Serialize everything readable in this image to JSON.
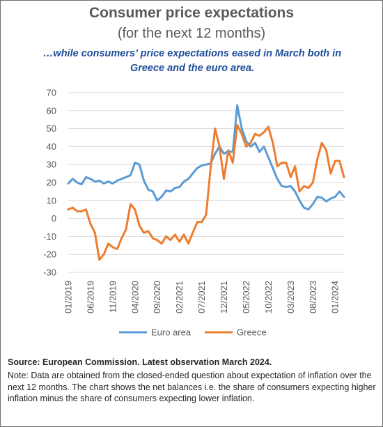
{
  "header": {
    "title": "Consumer price expectations",
    "subtitle": "(for the next 12 months)",
    "tagline": "…while consumers’ price expectations eased in March both in Greece and the euro area."
  },
  "footer": {
    "source": "Source: European Commission. Latest observation March 2024.",
    "note": "Note: Data are obtained from the closed-ended question about expectation of inflation over the next 12 months. The chart shows the net balances i.e. the share of consumers expecting higher inflation minus the share of consumers expecting lower inflation."
  },
  "chart_data": {
    "type": "line",
    "x_start": "01/2019",
    "x_tick_labels": [
      "01/2019",
      "06/2019",
      "11/2019",
      "04/2020",
      "09/2020",
      "02/2021",
      "07/2021",
      "12/2021",
      "05/2022",
      "10/2022",
      "03/2023",
      "08/2023",
      "01/2024"
    ],
    "ylim": [
      -30,
      70
    ],
    "y_ticks": [
      -30,
      -20,
      -10,
      0,
      10,
      20,
      30,
      40,
      50,
      60,
      70
    ],
    "grid": true,
    "legend_position": "bottom",
    "series": [
      {
        "name": "Euro area",
        "color": "#5b9bd5",
        "values": [
          19.5,
          22,
          20,
          19,
          23,
          22,
          20.5,
          21,
          19.5,
          20.5,
          19.5,
          21,
          22,
          23,
          24,
          31,
          30,
          21,
          16,
          15,
          10,
          12,
          15.5,
          15,
          17,
          17.5,
          20.5,
          22,
          25,
          28,
          29.5,
          30,
          30.5,
          36,
          40,
          36,
          37.5,
          37,
          63,
          50,
          43,
          40,
          42,
          37,
          40,
          34,
          28,
          22,
          18,
          17.5,
          18,
          15,
          10,
          6,
          5,
          8,
          12,
          11.5,
          9.5,
          11,
          12,
          15,
          12
        ]
      },
      {
        "name": "Greece",
        "color": "#ed7d31",
        "values": [
          5,
          6,
          4,
          4,
          5,
          -3,
          -8,
          -23,
          -20,
          -14,
          -16,
          -17,
          -11,
          -6,
          8,
          5,
          -4,
          -8,
          -7,
          -11,
          -12,
          -14,
          -10,
          -12,
          -9,
          -13,
          -9,
          -14,
          -8,
          -2,
          -2,
          2,
          28,
          50,
          40,
          22,
          38,
          31,
          52,
          47,
          40,
          42,
          47,
          46,
          48,
          51,
          42,
          29,
          31,
          31,
          23,
          29,
          15,
          18,
          17,
          20,
          33,
          42,
          38,
          25,
          32,
          32,
          23
        ]
      }
    ]
  }
}
